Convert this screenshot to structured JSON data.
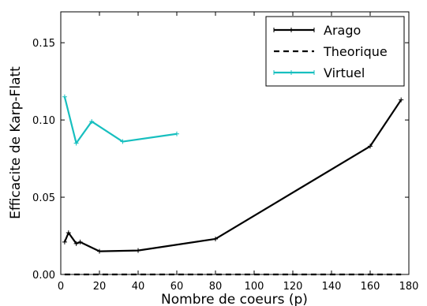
{
  "chart_data": {
    "type": "line",
    "xlabel": "Nombre de coeurs (p)",
    "ylabel": "Efficacite de Karp-Flatt",
    "xlim": [
      0,
      180
    ],
    "ylim": [
      0,
      0.17
    ],
    "x_ticks": [
      0,
      20,
      40,
      60,
      80,
      100,
      120,
      140,
      160,
      180
    ],
    "x_tick_labels": [
      "0",
      "20",
      "40",
      "60",
      "80",
      "100",
      "120",
      "140",
      "160",
      "180"
    ],
    "y_ticks": [
      0.0,
      0.05,
      0.1,
      0.15
    ],
    "y_tick_labels": [
      "0.00",
      "0.05",
      "0.10",
      "0.15"
    ],
    "legend_position": "top-right",
    "series": [
      {
        "name": "Arago",
        "color": "#000000",
        "style": "solid",
        "x": [
          2,
          4,
          8,
          10,
          20,
          40,
          80,
          160,
          176
        ],
        "y": [
          0.021,
          0.027,
          0.02,
          0.021,
          0.015,
          0.0155,
          0.023,
          0.083,
          0.113
        ]
      },
      {
        "name": "Theorique",
        "color": "#000000",
        "style": "dashed",
        "x": [
          2,
          4,
          8,
          10,
          20,
          40,
          80,
          160,
          176
        ],
        "y": [
          0,
          0,
          0,
          0,
          0,
          0,
          0,
          0,
          0
        ]
      },
      {
        "name": "Virtuel",
        "color": "#17bfbf",
        "style": "solid",
        "x": [
          2,
          8,
          16,
          32,
          60
        ],
        "y": [
          0.115,
          0.085,
          0.099,
          0.086,
          0.091
        ]
      }
    ]
  }
}
